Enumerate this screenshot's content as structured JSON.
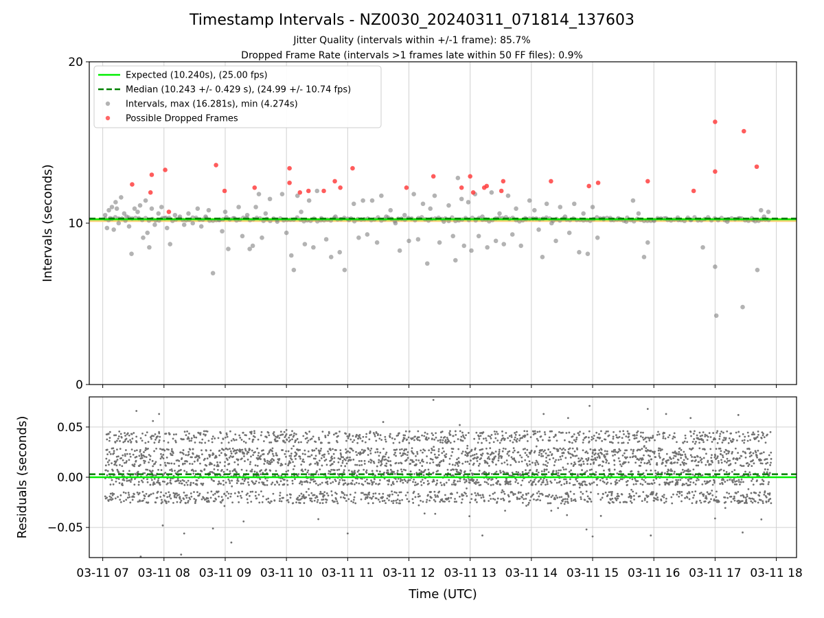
{
  "chart_data": [
    {
      "type": "scatter",
      "title": "Timestamp Intervals - NZ0030_20240311_071814_137603",
      "subtitle_lines": [
        "Jitter Quality (intervals within +/-1 frame): 85.7%",
        "Dropped Frame Rate (intervals >1 frames late within 50 FF files): 0.9%"
      ],
      "xlabel": "",
      "ylabel": "Intervals (seconds)",
      "x_unit": "hours (UTC) on 2024-03-11",
      "xlim": [
        6.78,
        18.33
      ],
      "ylim": [
        0,
        20
      ],
      "y_ticks": [
        "0",
        "10",
        "20"
      ],
      "grid": "vertical",
      "legend_position": "top-left",
      "legend": [
        "Expected (10.240s), (25.00 fps)",
        "Median (10.243 +/- 0.429 s), (24.99 +/- 10.74 fps)",
        "Intervals, max (16.281s), min (4.274s)",
        "Possible Dropped Frames"
      ],
      "expected_line": {
        "y": 10.24,
        "color": "#00ee00"
      },
      "median_line": {
        "y": 10.243,
        "color": "#008000"
      },
      "band": {
        "y": 10.24,
        "half_width": 0.08,
        "color": "#ffcf6b"
      },
      "series": [
        {
          "name": "Intervals, max (16.281s), min (4.274s)",
          "color": "#808080",
          "points": [
            [
              7.04,
              10.5
            ],
            [
              7.07,
              9.7
            ],
            [
              7.1,
              10.8
            ],
            [
              7.12,
              10.3
            ],
            [
              7.15,
              11.0
            ],
            [
              7.18,
              9.6
            ],
            [
              7.21,
              11.3
            ],
            [
              7.23,
              10.9
            ],
            [
              7.26,
              10.0
            ],
            [
              7.3,
              11.6
            ],
            [
              7.35,
              10.6
            ],
            [
              7.39,
              10.4
            ],
            [
              7.43,
              9.8
            ],
            [
              7.47,
              8.1
            ],
            [
              7.52,
              10.9
            ],
            [
              7.57,
              10.7
            ],
            [
              7.61,
              11.1
            ],
            [
              7.66,
              9.1
            ],
            [
              7.7,
              11.4
            ],
            [
              7.73,
              9.4
            ],
            [
              7.76,
              8.5
            ],
            [
              7.8,
              10.9
            ],
            [
              7.85,
              9.9
            ],
            [
              7.91,
              10.6
            ],
            [
              7.96,
              11.0
            ],
            [
              8.01,
              10.3
            ],
            [
              8.05,
              9.7
            ],
            [
              8.1,
              8.7
            ],
            [
              8.18,
              10.5
            ],
            [
              8.26,
              10.4
            ],
            [
              8.33,
              9.9
            ],
            [
              8.4,
              10.6
            ],
            [
              8.47,
              10.0
            ],
            [
              8.55,
              10.9
            ],
            [
              8.61,
              9.8
            ],
            [
              8.68,
              10.4
            ],
            [
              8.73,
              10.8
            ],
            [
              8.8,
              6.9
            ],
            [
              8.9,
              10.2
            ],
            [
              8.95,
              9.5
            ],
            [
              9.0,
              10.7
            ],
            [
              9.05,
              8.4
            ],
            [
              9.15,
              10.3
            ],
            [
              9.22,
              11.0
            ],
            [
              9.28,
              9.2
            ],
            [
              9.36,
              10.5
            ],
            [
              9.4,
              8.4
            ],
            [
              9.45,
              8.6
            ],
            [
              9.5,
              11.0
            ],
            [
              9.55,
              11.8
            ],
            [
              9.6,
              9.1
            ],
            [
              9.66,
              10.6
            ],
            [
              9.73,
              11.5
            ],
            [
              9.85,
              10.1
            ],
            [
              9.93,
              11.8
            ],
            [
              10.0,
              9.4
            ],
            [
              10.08,
              8.0
            ],
            [
              10.12,
              7.1
            ],
            [
              10.18,
              11.7
            ],
            [
              10.24,
              10.7
            ],
            [
              10.3,
              8.7
            ],
            [
              10.37,
              11.4
            ],
            [
              10.44,
              8.5
            ],
            [
              10.5,
              12.0
            ],
            [
              10.57,
              10.3
            ],
            [
              10.65,
              9.0
            ],
            [
              10.73,
              7.9
            ],
            [
              10.8,
              10.4
            ],
            [
              10.87,
              8.2
            ],
            [
              10.95,
              7.1
            ],
            [
              11.02,
              10.2
            ],
            [
              11.1,
              11.2
            ],
            [
              11.18,
              9.1
            ],
            [
              11.25,
              11.4
            ],
            [
              11.32,
              9.3
            ],
            [
              11.4,
              11.4
            ],
            [
              11.48,
              8.8
            ],
            [
              11.55,
              11.7
            ],
            [
              11.63,
              10.4
            ],
            [
              11.7,
              10.8
            ],
            [
              11.78,
              10.0
            ],
            [
              11.85,
              8.3
            ],
            [
              11.93,
              10.5
            ],
            [
              12.0,
              8.9
            ],
            [
              12.08,
              11.8
            ],
            [
              12.15,
              9.0
            ],
            [
              12.23,
              11.2
            ],
            [
              12.3,
              7.5
            ],
            [
              12.35,
              10.9
            ],
            [
              12.42,
              11.7
            ],
            [
              12.5,
              8.8
            ],
            [
              12.57,
              10.1
            ],
            [
              12.65,
              11.1
            ],
            [
              12.72,
              9.2
            ],
            [
              12.76,
              7.7
            ],
            [
              12.8,
              12.8
            ],
            [
              12.86,
              11.5
            ],
            [
              12.9,
              8.6
            ],
            [
              12.97,
              11.3
            ],
            [
              13.02,
              8.3
            ],
            [
              13.08,
              11.8
            ],
            [
              13.14,
              9.2
            ],
            [
              13.2,
              10.4
            ],
            [
              13.28,
              8.5
            ],
            [
              13.35,
              11.9
            ],
            [
              13.42,
              8.9
            ],
            [
              13.48,
              10.6
            ],
            [
              13.55,
              8.7
            ],
            [
              13.62,
              11.7
            ],
            [
              13.69,
              9.3
            ],
            [
              13.75,
              10.9
            ],
            [
              13.83,
              8.6
            ],
            [
              13.9,
              10.3
            ],
            [
              13.97,
              11.4
            ],
            [
              14.05,
              10.8
            ],
            [
              14.12,
              9.6
            ],
            [
              14.18,
              7.9
            ],
            [
              14.25,
              11.2
            ],
            [
              14.33,
              10.0
            ],
            [
              14.4,
              8.9
            ],
            [
              14.47,
              11.0
            ],
            [
              14.55,
              10.4
            ],
            [
              14.62,
              9.4
            ],
            [
              14.7,
              11.2
            ],
            [
              14.78,
              8.2
            ],
            [
              14.85,
              10.6
            ],
            [
              14.92,
              8.1
            ],
            [
              15.0,
              11.0
            ],
            [
              15.08,
              9.1
            ],
            [
              15.18,
              10.3
            ],
            [
              15.3,
              10.2
            ],
            [
              15.42,
              10.3
            ],
            [
              15.55,
              10.1
            ],
            [
              15.66,
              11.4
            ],
            [
              15.75,
              10.6
            ],
            [
              15.84,
              7.9
            ],
            [
              15.9,
              8.8
            ],
            [
              16.0,
              10.2
            ],
            [
              16.2,
              10.3
            ],
            [
              16.4,
              10.2
            ],
            [
              16.6,
              10.2
            ],
            [
              16.8,
              8.5
            ],
            [
              17.0,
              7.3
            ],
            [
              17.02,
              4.27
            ],
            [
              17.2,
              10.1
            ],
            [
              17.4,
              10.3
            ],
            [
              17.45,
              4.8
            ],
            [
              17.62,
              10.2
            ],
            [
              17.69,
              7.1
            ],
            [
              17.75,
              10.8
            ],
            [
              17.8,
              10.4
            ],
            [
              17.87,
              10.7
            ]
          ]
        },
        {
          "name": "Possible Dropped Frames",
          "color": "#ff4040",
          "points": [
            [
              7.48,
              12.4
            ],
            [
              7.78,
              11.9
            ],
            [
              7.8,
              13.0
            ],
            [
              8.02,
              13.3
            ],
            [
              8.08,
              10.7
            ],
            [
              8.85,
              13.6
            ],
            [
              8.99,
              12.0
            ],
            [
              9.48,
              12.2
            ],
            [
              10.05,
              13.4
            ],
            [
              10.05,
              12.5
            ],
            [
              10.22,
              11.9
            ],
            [
              10.36,
              12.0
            ],
            [
              10.61,
              12.0
            ],
            [
              10.79,
              12.6
            ],
            [
              10.88,
              12.2
            ],
            [
              11.08,
              13.4
            ],
            [
              11.96,
              12.2
            ],
            [
              12.4,
              12.9
            ],
            [
              12.86,
              12.2
            ],
            [
              13.0,
              12.9
            ],
            [
              13.05,
              11.9
            ],
            [
              13.23,
              12.2
            ],
            [
              13.27,
              12.3
            ],
            [
              13.51,
              12.0
            ],
            [
              13.54,
              12.6
            ],
            [
              14.32,
              12.6
            ],
            [
              14.94,
              12.3
            ],
            [
              15.09,
              12.5
            ],
            [
              15.9,
              12.6
            ],
            [
              16.65,
              12.0
            ],
            [
              17.0,
              16.28
            ],
            [
              17.0,
              13.2
            ],
            [
              17.47,
              15.7
            ],
            [
              17.68,
              13.5
            ]
          ]
        }
      ]
    },
    {
      "type": "scatter",
      "ylabel": "Residuals (seconds)",
      "xlabel": "Time (UTC)",
      "xlim": [
        6.78,
        18.33
      ],
      "ylim": [
        -0.08,
        0.08
      ],
      "y_ticks": [
        "0.05",
        "0.00",
        "−0.05"
      ],
      "x_ticks": [
        {
          "hour": 7,
          "label": "03-11 07"
        },
        {
          "hour": 8,
          "label": "03-11 08"
        },
        {
          "hour": 9,
          "label": "03-11 09"
        },
        {
          "hour": 10,
          "label": "03-11 10"
        },
        {
          "hour": 11,
          "label": "03-11 11"
        },
        {
          "hour": 12,
          "label": "03-11 12"
        },
        {
          "hour": 13,
          "label": "03-11 13"
        },
        {
          "hour": 14,
          "label": "03-11 14"
        },
        {
          "hour": 15,
          "label": "03-11 15"
        },
        {
          "hour": 16,
          "label": "03-11 16"
        },
        {
          "hour": 17,
          "label": "03-11 17"
        },
        {
          "hour": 18,
          "label": "03-11 18"
        }
      ],
      "grid": "both",
      "zero_line": {
        "y": 0.0,
        "color": "#00ee00"
      },
      "median_line": {
        "y": 0.003,
        "color": "#008000"
      },
      "series_color": "#707070",
      "residual_time_range": [
        7.04,
        17.92
      ],
      "residual_point_count": 3800,
      "residual_spread_seconds": 0.021,
      "residual_outliers": [
        [
          7.12,
          0.045
        ],
        [
          7.55,
          0.066
        ],
        [
          7.62,
          -0.079
        ],
        [
          7.82,
          0.056
        ],
        [
          7.92,
          0.063
        ],
        [
          7.98,
          -0.048
        ],
        [
          8.28,
          -0.077
        ],
        [
          8.33,
          -0.056
        ],
        [
          8.8,
          -0.051
        ],
        [
          9.1,
          -0.065
        ],
        [
          9.3,
          -0.044
        ],
        [
          10.0,
          0.047
        ],
        [
          11.0,
          -0.056
        ],
        [
          11.58,
          0.055
        ],
        [
          12.4,
          0.077
        ],
        [
          12.83,
          0.052
        ],
        [
          13.2,
          -0.058
        ],
        [
          14.2,
          0.063
        ],
        [
          14.6,
          0.059
        ],
        [
          14.9,
          -0.052
        ],
        [
          14.95,
          0.071
        ],
        [
          15.0,
          -0.059
        ],
        [
          15.9,
          0.068
        ],
        [
          15.95,
          -0.058
        ],
        [
          16.2,
          0.063
        ],
        [
          16.6,
          0.059
        ],
        [
          17.0,
          -0.041
        ],
        [
          17.38,
          0.062
        ],
        [
          17.45,
          -0.055
        ]
      ]
    }
  ]
}
